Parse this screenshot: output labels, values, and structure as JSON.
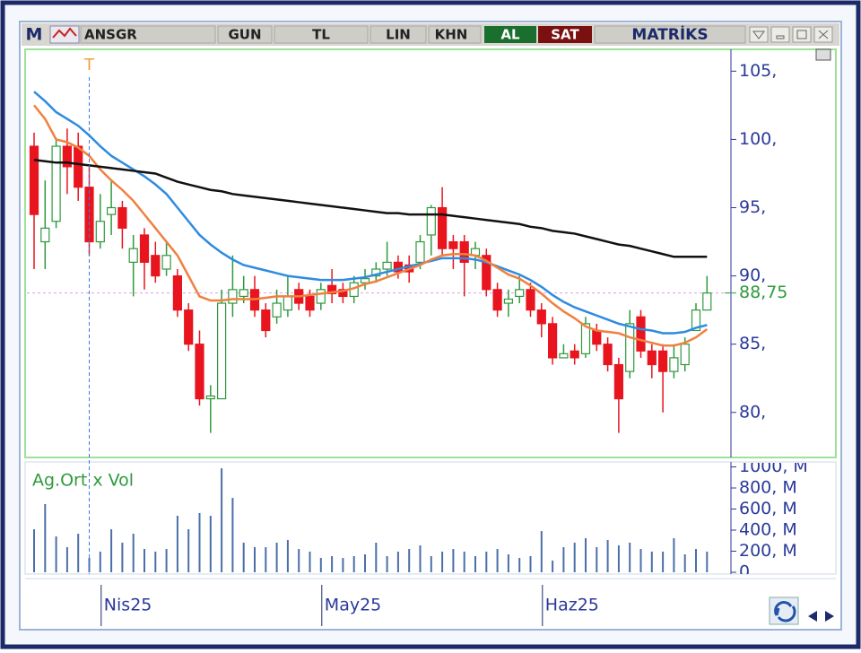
{
  "toolbar": {
    "logo": "M",
    "symbol": "ANSGR",
    "buttons": [
      "GUN",
      "TL",
      "LIN",
      "KHN"
    ],
    "buy": "AL",
    "sell": "SAT",
    "brand": "MATRİKS"
  },
  "chart_data": [
    {
      "type": "candlestick",
      "categories": [
        null,
        null,
        null,
        null,
        null,
        null,
        "Nis25",
        null,
        null,
        null,
        null,
        null,
        null,
        null,
        null,
        null,
        null,
        null,
        null,
        null,
        null,
        null,
        null,
        null,
        null,
        null,
        "May25",
        null,
        null,
        null,
        null,
        null,
        null,
        null,
        null,
        null,
        null,
        null,
        null,
        null,
        null,
        null,
        null,
        null,
        null,
        null,
        "Haz25",
        null,
        null,
        null,
        null,
        null,
        null,
        null,
        null,
        null,
        null,
        null,
        null,
        null,
        null,
        null
      ],
      "open": [
        99.5,
        92.5,
        94,
        99.5,
        99.5,
        96.5,
        92.5,
        94.5,
        95,
        91,
        93,
        91.5,
        90.5,
        90,
        87.5,
        85,
        81,
        81,
        88,
        88.5,
        89,
        87.5,
        87,
        87.5,
        89,
        88.5,
        88,
        89.3,
        89,
        88.5,
        89.5,
        90,
        90.5,
        91,
        90.8,
        91,
        93,
        95,
        92.5,
        92.5,
        91.5,
        91.5,
        89,
        88,
        88.5,
        89,
        87.5,
        86.5,
        84,
        84.5,
        84.3,
        86,
        85,
        83.5,
        83,
        87,
        84.5,
        84.5,
        83,
        83.5,
        86,
        87.5
      ],
      "high": [
        100.5,
        97,
        100,
        100.8,
        100.5,
        98,
        96,
        97,
        95.5,
        93,
        93.5,
        92.5,
        92.5,
        90.5,
        88,
        86,
        82,
        89,
        91.5,
        90,
        90,
        88,
        89,
        90,
        89.5,
        89,
        89.5,
        90.5,
        89.5,
        90,
        90.5,
        91,
        92.5,
        91.5,
        91.5,
        93,
        95.2,
        96.5,
        93,
        93,
        92.5,
        92,
        89.5,
        89,
        90,
        89.5,
        88,
        87,
        85,
        85,
        87,
        86.5,
        85.5,
        84,
        87.5,
        87.5,
        85,
        85,
        85,
        85.5,
        88,
        90
      ],
      "low": [
        90.5,
        90.5,
        93.5,
        96,
        95.5,
        91.5,
        92,
        93,
        92,
        88.5,
        89,
        89.5,
        90,
        87,
        84.5,
        80.5,
        78.5,
        81,
        87,
        88,
        87,
        85.5,
        86.5,
        87,
        87.5,
        87,
        87.5,
        88,
        88,
        88,
        89,
        89.5,
        90,
        89.8,
        89.5,
        90.5,
        91.5,
        91.5,
        90.5,
        88.5,
        90.5,
        88.5,
        87,
        87,
        88,
        87,
        85.5,
        83.5,
        84,
        83.5,
        84,
        84.5,
        83,
        78.5,
        82.5,
        84,
        82.5,
        80,
        82.5,
        83,
        86,
        87.5
      ],
      "close": [
        94.5,
        93.5,
        99.5,
        98,
        96.5,
        92.5,
        94,
        95,
        93.5,
        92,
        91,
        90,
        91.5,
        87.5,
        85,
        81,
        81.2,
        88,
        89,
        89,
        87.5,
        86,
        88,
        88.5,
        88,
        87.5,
        89,
        88.7,
        88.5,
        89.5,
        89.8,
        90.5,
        91,
        90.3,
        90.3,
        92.5,
        95,
        92,
        92,
        91,
        92,
        89,
        87.5,
        88.3,
        89,
        87.5,
        86.5,
        84,
        84.3,
        84,
        86.5,
        85,
        83.5,
        81,
        86.5,
        84.5,
        83.5,
        83,
        84,
        85,
        87.5,
        88.75
      ],
      "up_color": "#2e9a3c",
      "down_color": "#e8141e",
      "lines": [
        {
          "color": "#2f8be0",
          "values": [
            103.5,
            102.8,
            102,
            101.5,
            101,
            100.3,
            99.5,
            98.8,
            98.3,
            97.8,
            97.3,
            96.7,
            96,
            95,
            94,
            93,
            92.3,
            91.7,
            91.2,
            90.8,
            90.6,
            90.4,
            90.2,
            90,
            89.9,
            89.8,
            89.7,
            89.7,
            89.7,
            89.8,
            89.9,
            90.1,
            90.3,
            90.5,
            90.7,
            90.9,
            91.1,
            91.3,
            91.3,
            91.3,
            91.2,
            91,
            90.7,
            90.4,
            90.1,
            89.7,
            89.2,
            88.6,
            88.1,
            87.7,
            87.4,
            87.1,
            86.8,
            86.5,
            86.3,
            86.1,
            86,
            85.8,
            85.8,
            85.9,
            86.2,
            86.4
          ]
        },
        {
          "color": "#f08040",
          "values": [
            102.5,
            101.5,
            100,
            99.8,
            99.4,
            98.8,
            97.8,
            97,
            96.3,
            95.5,
            94.5,
            93.5,
            92.5,
            91.5,
            90,
            88.5,
            88.2,
            88.2,
            88.3,
            88.3,
            88.3,
            88.4,
            88.5,
            88.5,
            88.5,
            88.6,
            88.7,
            88.8,
            88.9,
            89.1,
            89.4,
            89.6,
            89.9,
            90.2,
            90.5,
            90.8,
            91.2,
            91.5,
            91.6,
            91.6,
            91.5,
            91.1,
            90.6,
            90.1,
            89.8,
            89.3,
            88.7,
            88,
            87.4,
            86.9,
            86.3,
            86,
            85.9,
            85.8,
            85.5,
            85.3,
            85.1,
            84.9,
            84.9,
            85.1,
            85.5,
            86.1
          ]
        },
        {
          "color": "#111111",
          "values": [
            98.5,
            98.4,
            98.3,
            98.3,
            98.2,
            98.1,
            98,
            97.9,
            97.8,
            97.7,
            97.6,
            97.5,
            97.2,
            96.9,
            96.7,
            96.5,
            96.3,
            96.2,
            96,
            95.9,
            95.8,
            95.7,
            95.6,
            95.5,
            95.4,
            95.3,
            95.2,
            95.1,
            95,
            94.9,
            94.8,
            94.7,
            94.6,
            94.6,
            94.5,
            94.5,
            94.5,
            94.5,
            94.4,
            94.3,
            94.2,
            94.1,
            94,
            93.9,
            93.8,
            93.6,
            93.5,
            93.3,
            93.2,
            93.1,
            92.9,
            92.7,
            92.5,
            92.3,
            92.2,
            92,
            91.8,
            91.6,
            91.4,
            91.4,
            91.4,
            91.4
          ]
        }
      ],
      "ylim": [
        76.7,
        106.6
      ],
      "yticks": [
        {
          "value": 80,
          "label": "80,"
        },
        {
          "value": 85,
          "label": "85,"
        },
        {
          "value": 90,
          "label": "90,"
        },
        {
          "value": 95,
          "label": "95,"
        },
        {
          "value": 100,
          "label": "100,"
        },
        {
          "value": 105,
          "label": "105,"
        }
      ],
      "last_value": 88.75,
      "last_value_label": "88,75",
      "marker": {
        "label": "T",
        "category_index": 5
      }
    },
    {
      "type": "bar",
      "title": "Ag.Ort x Vol",
      "color": "#4a6fa8",
      "values": [
        408,
        647,
        340,
        238,
        366,
        136,
        196,
        408,
        281,
        366,
        221,
        196,
        221,
        536,
        408,
        562,
        536,
        987,
        706,
        281,
        238,
        238,
        281,
        306,
        221,
        196,
        136,
        153,
        136,
        153,
        170,
        281,
        153,
        196,
        221,
        255,
        153,
        196,
        221,
        196,
        153,
        196,
        221,
        170,
        136,
        153,
        391,
        111,
        238,
        281,
        323,
        238,
        306,
        255,
        281,
        221,
        196,
        196,
        323,
        170,
        221,
        196
      ],
      "ylim": [
        0,
        1047
      ],
      "yticks": [
        0,
        {
          "value": 200,
          "label": "200, M"
        },
        {
          "value": 400,
          "label": "400, M"
        },
        {
          "value": 600,
          "label": "600, M"
        },
        {
          "value": 800,
          "label": "800, M"
        },
        {
          "value": 1000,
          "label": "1000, M"
        }
      ]
    }
  ]
}
